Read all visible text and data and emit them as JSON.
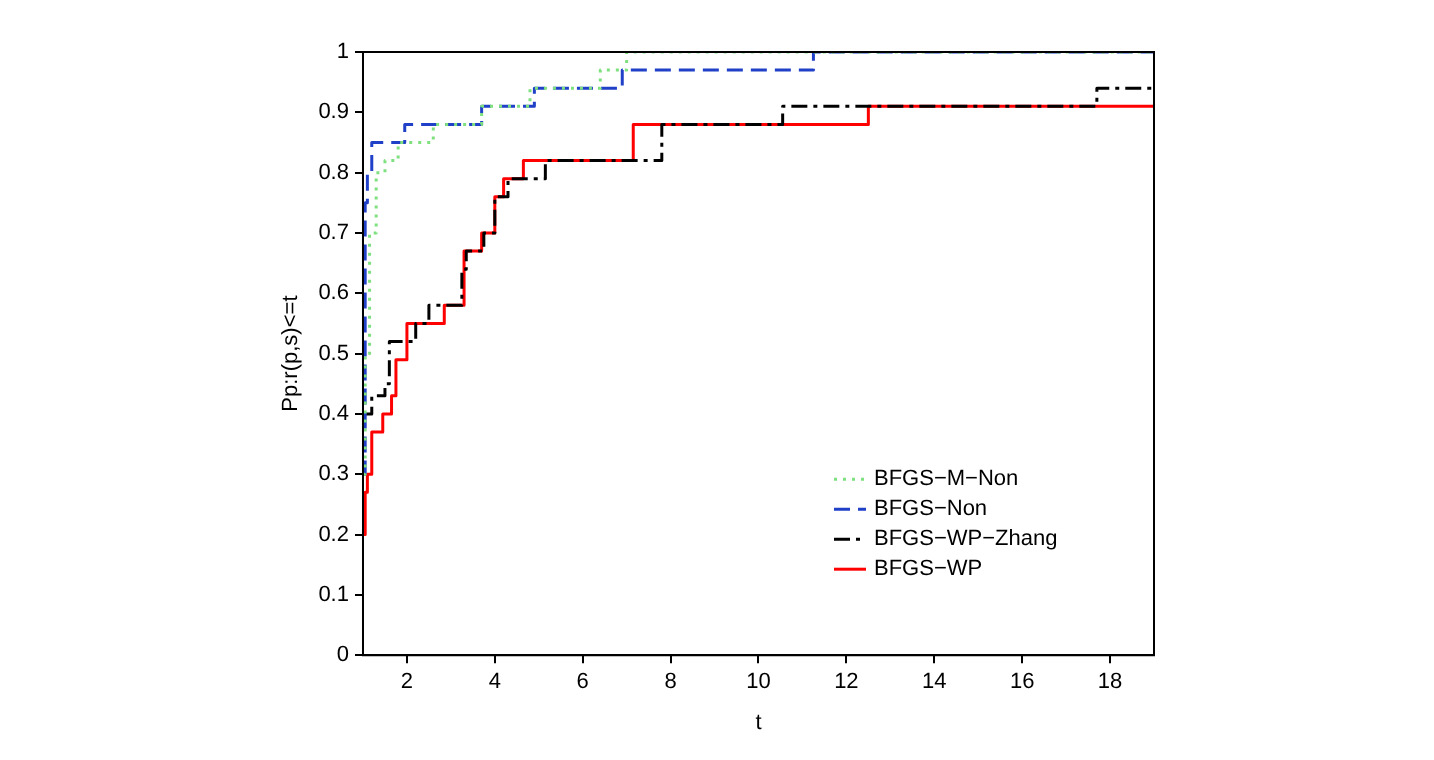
{
  "chart_data": {
    "type": "step",
    "xlabel": "t",
    "ylabel": "Pp:r(p,s)<=t",
    "xlim": [
      1,
      19
    ],
    "xticks": [
      2,
      4,
      6,
      8,
      10,
      12,
      14,
      16,
      18
    ],
    "ylim": [
      0,
      1
    ],
    "yticks": [
      0,
      0.1,
      0.2,
      0.3,
      0.4,
      0.5,
      0.6,
      0.7,
      0.8,
      0.9,
      1
    ],
    "grid": false,
    "legend": "bottom right",
    "marker": "none",
    "series": [
      {
        "name": "BFGS−M−Non",
        "color": "#7ee07e",
        "line_style": "dotted",
        "x": [
          1,
          1.05,
          1.15,
          1.3,
          1.5,
          1.8,
          2.6,
          3.7,
          4.8,
          6.4,
          7.0,
          19
        ],
        "values": [
          0.3,
          0.5,
          0.7,
          0.8,
          0.82,
          0.85,
          0.88,
          0.91,
          0.94,
          0.97,
          1,
          1
        ]
      },
      {
        "name": "BFGS−Non",
        "color": "#2040c8",
        "line_style": "dashed",
        "x": [
          1,
          1.05,
          1.1,
          1.2,
          1.95,
          3.7,
          4.9,
          6.9,
          11.25,
          19
        ],
        "values": [
          0.3,
          0.75,
          0.8,
          0.85,
          0.88,
          0.91,
          0.94,
          0.97,
          1,
          1
        ]
      },
      {
        "name": "BFGS−WP−Zhang",
        "color": "#000000",
        "line_style": "dashdot",
        "x": [
          1,
          1.2,
          1.5,
          1.6,
          2.2,
          2.5,
          3.25,
          3.35,
          3.75,
          4.0,
          4.3,
          5.15,
          7.8,
          10.55,
          17.7,
          19
        ],
        "values": [
          0.4,
          0.43,
          0.45,
          0.52,
          0.55,
          0.58,
          0.64,
          0.67,
          0.7,
          0.76,
          0.79,
          0.82,
          0.88,
          0.91,
          0.94,
          0.94
        ]
      },
      {
        "name": "BFGS−WP",
        "color": "#ff0000",
        "line_style": "solid",
        "x": [
          1,
          1.05,
          1.1,
          1.2,
          1.45,
          1.65,
          1.75,
          2.0,
          2.85,
          3.3,
          3.7,
          4.0,
          4.2,
          4.65,
          7.15,
          12.5,
          19
        ],
        "values": [
          0.2,
          0.27,
          0.3,
          0.37,
          0.4,
          0.43,
          0.49,
          0.55,
          0.58,
          0.67,
          0.7,
          0.76,
          0.79,
          0.82,
          0.88,
          0.91,
          0.91
        ]
      }
    ]
  }
}
